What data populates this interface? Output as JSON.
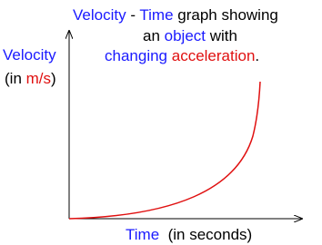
{
  "title": {
    "line1": [
      "Velocity",
      " - ",
      "Time",
      " graph showing"
    ],
    "line2": [
      "an ",
      "object",
      " with"
    ],
    "line3": [
      "changing",
      " acceleration",
      "."
    ]
  },
  "y_axis_label": {
    "line1": "Velocity",
    "line2": [
      "(in ",
      "m/s",
      ")"
    ]
  },
  "x_axis_label": [
    "Time",
    "  (in seconds)"
  ]
}
